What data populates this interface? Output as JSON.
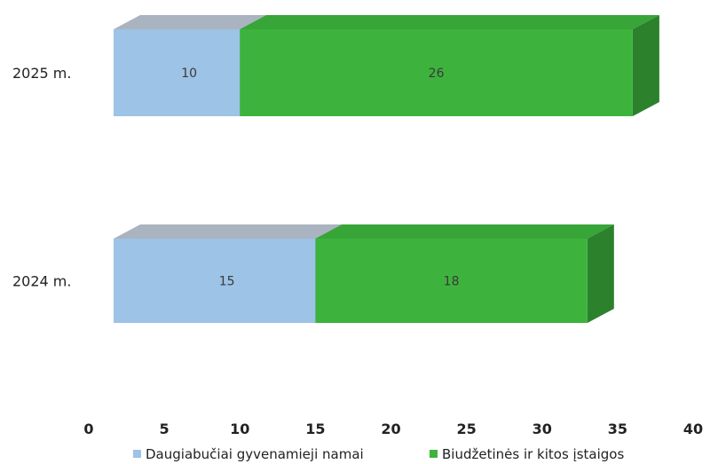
{
  "chart_data": {
    "type": "bar",
    "orientation": "horizontal",
    "stacked": true,
    "style": "3d",
    "categories": [
      "2025 m.",
      "2024 m."
    ],
    "series": [
      {
        "name": "Daugiabučiai gyvenamieji namai",
        "values": [
          10,
          15
        ],
        "data_labels": [
          "10",
          "15"
        ],
        "color": "#9dc3e6"
      },
      {
        "name": "Biudžetinės ir kitos įstaigos",
        "values": [
          26,
          18
        ],
        "data_labels": [
          "26",
          "18"
        ],
        "color": "#3db33d"
      }
    ],
    "x_ticks": [
      "0",
      "5",
      "10",
      "15",
      "20",
      "25",
      "30",
      "35",
      "40"
    ],
    "xlim": [
      0,
      40
    ],
    "grid": false,
    "legend_position": "bottom"
  }
}
